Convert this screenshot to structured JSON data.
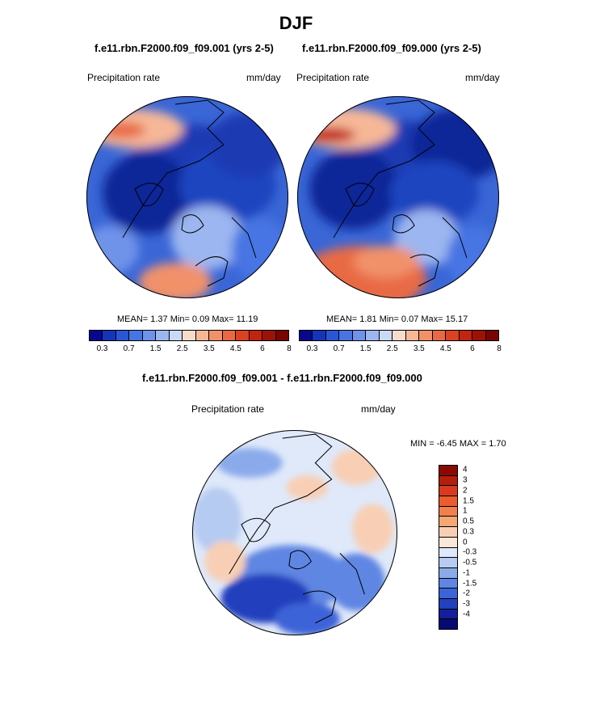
{
  "main_title": "DJF",
  "panels": [
    {
      "title": "f.e11.rbn.F2000.f09_f09.001 (yrs 2-5)",
      "variable": "Precipitation rate",
      "units": "mm/day",
      "stats": "MEAN=   1.37  Min=   0.09  Max=  11.19",
      "mean": 1.37,
      "min": 0.09,
      "max": 11.19
    },
    {
      "title": "f.e11.rbn.F2000.f09_f09.000 (yrs 2-5)",
      "variable": "Precipitation rate",
      "units": "mm/day",
      "stats": "MEAN=   1.81  Min=   0.07  Max=  15.17",
      "mean": 1.81,
      "min": 0.07,
      "max": 15.17
    }
  ],
  "diff_panel": {
    "title": "f.e11.rbn.F2000.f09_f09.001 - f.e11.rbn.F2000.f09_f09.000",
    "variable": "Precipitation rate",
    "units": "mm/day",
    "stats": "MIN =  -6.45 MAX =   1.70",
    "min": -6.45,
    "max": 1.7
  },
  "precip_colorbar": {
    "tick_labels": [
      "0.3",
      "0.7",
      "1.5",
      "2.5",
      "3.5",
      "4.5",
      "6",
      "8"
    ],
    "colors": [
      "#08088c",
      "#1534b8",
      "#2a56d6",
      "#4774e3",
      "#6f93ea",
      "#9bb6f0",
      "#c9d9f6",
      "#f8dccb",
      "#f6b797",
      "#f1916a",
      "#e86a44",
      "#da4222",
      "#c12410",
      "#9c1306",
      "#7a0402"
    ]
  },
  "diff_colorbar": {
    "tick_labels": [
      "4",
      "3",
      "2",
      "1.5",
      "1",
      "0.5",
      "0.3",
      "0",
      "-0.3",
      "-0.5",
      "-1",
      "-1.5",
      "-2",
      "-3",
      "-4"
    ],
    "colors": [
      "#8a0a02",
      "#b51d0c",
      "#d83a1f",
      "#ec5c2e",
      "#f1814c",
      "#f6a774",
      "#f8cfb4",
      "#fbe7da",
      "#dfe9fa",
      "#b6cbf1",
      "#8aaaeb",
      "#5f86e3",
      "#3d63d8",
      "#2340bd",
      "#141f9c",
      "#060a74"
    ]
  },
  "chart_data": [
    {
      "type": "heatmap",
      "projection": "polar stereographic (north)",
      "title": "f.e11.rbn.F2000.f09_f09.001 (yrs 2-5)",
      "variable": "Precipitation rate",
      "units": "mm/day",
      "mean": 1.37,
      "min": 0.09,
      "max": 11.19,
      "contour_levels": [
        0.3,
        0.7,
        1.5,
        2.5,
        3.5,
        4.5,
        6,
        8
      ]
    },
    {
      "type": "heatmap",
      "projection": "polar stereographic (north)",
      "title": "f.e11.rbn.F2000.f09_f09.000 (yrs 2-5)",
      "variable": "Precipitation rate",
      "units": "mm/day",
      "mean": 1.81,
      "min": 0.07,
      "max": 15.17,
      "contour_levels": [
        0.3,
        0.7,
        1.5,
        2.5,
        3.5,
        4.5,
        6,
        8
      ]
    },
    {
      "type": "heatmap",
      "projection": "polar stereographic (north)",
      "title": "f.e11.rbn.F2000.f09_f09.001 - f.e11.rbn.F2000.f09_f09.000",
      "variable": "Precipitation rate",
      "units": "mm/day",
      "min": -6.45,
      "max": 1.7,
      "contour_levels": [
        -4,
        -3,
        -2,
        -1.5,
        -1,
        -0.5,
        -0.3,
        0,
        0.3,
        0.5,
        1,
        1.5,
        2,
        3,
        4
      ]
    }
  ]
}
